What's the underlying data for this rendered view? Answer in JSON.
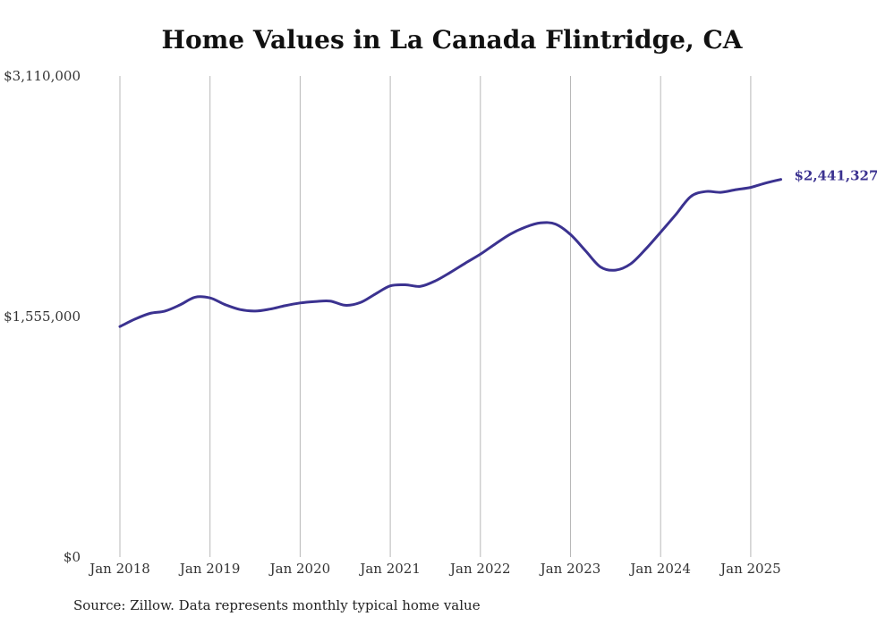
{
  "chart_data": {
    "type": "line",
    "title": "Home Values in La Canada Flintridge, CA",
    "xlabel": "",
    "ylabel": "",
    "x_tick_labels": [
      "Jan 2018",
      "Jan 2019",
      "Jan 2020",
      "Jan 2021",
      "Jan 2022",
      "Jan 2023",
      "Jan 2024",
      "Jan 2025"
    ],
    "y_tick_labels": [
      "$3,110,000",
      "$1,555,000",
      "$0"
    ],
    "ylim": [
      0,
      3110000
    ],
    "x_range": [
      "2018-01",
      "2025-05"
    ],
    "grid": "vertical",
    "line_color": "#3b3290",
    "series": [
      {
        "values": [
          [
            "2018-01",
            1490000
          ],
          [
            "2018-03",
            1538000
          ],
          [
            "2018-05",
            1575000
          ],
          [
            "2018-07",
            1590000
          ],
          [
            "2018-09",
            1630000
          ],
          [
            "2018-11",
            1680000
          ],
          [
            "2019-01",
            1675000
          ],
          [
            "2019-03",
            1632000
          ],
          [
            "2019-05",
            1600000
          ],
          [
            "2019-07",
            1590000
          ],
          [
            "2019-09",
            1603000
          ],
          [
            "2019-11",
            1625000
          ],
          [
            "2020-01",
            1643000
          ],
          [
            "2020-03",
            1652000
          ],
          [
            "2020-05",
            1655000
          ],
          [
            "2020-07",
            1628000
          ],
          [
            "2020-09",
            1645000
          ],
          [
            "2020-11",
            1700000
          ],
          [
            "2021-01",
            1753000
          ],
          [
            "2021-03",
            1760000
          ],
          [
            "2021-05",
            1750000
          ],
          [
            "2021-07",
            1785000
          ],
          [
            "2021-09",
            1840000
          ],
          [
            "2021-11",
            1900000
          ],
          [
            "2022-01",
            1958000
          ],
          [
            "2022-03",
            2025000
          ],
          [
            "2022-05",
            2088000
          ],
          [
            "2022-07",
            2133000
          ],
          [
            "2022-09",
            2160000
          ],
          [
            "2022-11",
            2153000
          ],
          [
            "2023-01",
            2085000
          ],
          [
            "2023-03",
            1980000
          ],
          [
            "2023-05",
            1875000
          ],
          [
            "2023-07",
            1855000
          ],
          [
            "2023-09",
            1895000
          ],
          [
            "2023-11",
            1990000
          ],
          [
            "2024-01",
            2100000
          ],
          [
            "2024-03",
            2213000
          ],
          [
            "2024-05",
            2330000
          ],
          [
            "2024-07",
            2363000
          ],
          [
            "2024-09",
            2358000
          ],
          [
            "2024-11",
            2375000
          ],
          [
            "2025-01",
            2390000
          ],
          [
            "2025-03",
            2418000
          ],
          [
            "2025-05",
            2441327
          ]
        ]
      }
    ],
    "end_label": "$2,441,327"
  },
  "source_note": "Source: Zillow. Data represents monthly typical home value"
}
